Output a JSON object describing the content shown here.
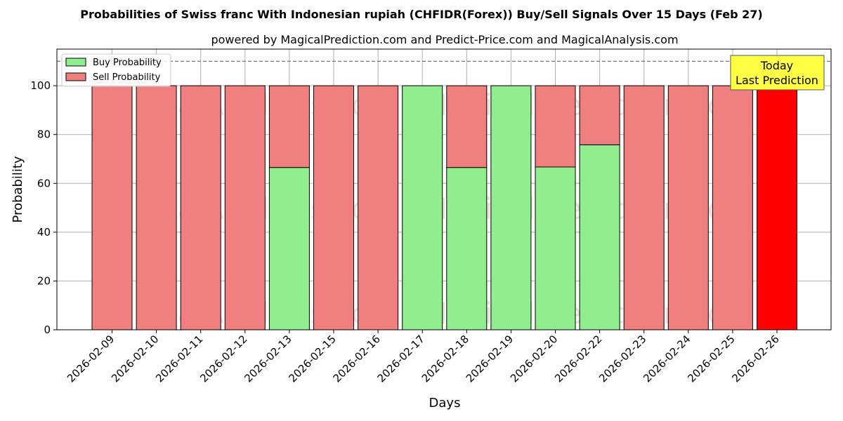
{
  "chart_data": {
    "type": "bar",
    "stacked": true,
    "title": "Probabilities of Swiss franc With Indonesian rupiah (CHFIDR(Forex)) Buy/Sell Signals Over 15 Days (Feb 27)",
    "subtitle": "powered by MagicalPrediction.com and Predict-Price.com and MagicalAnalysis.com",
    "xlabel": "Days",
    "ylabel": "Probability",
    "ylim": [
      0,
      115
    ],
    "yticks": [
      0,
      20,
      40,
      60,
      80,
      100
    ],
    "grid": true,
    "legend_placement": "top-left",
    "reference_line": 110,
    "categories": [
      "2026-02-09",
      "2026-02-10",
      "2026-02-11",
      "2026-02-12",
      "2026-02-13",
      "2026-02-15",
      "2026-02-16",
      "2026-02-17",
      "2026-02-18",
      "2026-02-19",
      "2026-02-20",
      "2026-02-22",
      "2026-02-23",
      "2026-02-24",
      "2026-02-25",
      "2026-02-26"
    ],
    "series": [
      {
        "name": "Buy Probability",
        "color": "#90ee90",
        "values": [
          0,
          0,
          0,
          0,
          66.5,
          0,
          0,
          100,
          66.5,
          100,
          66.7,
          75.8,
          0,
          0,
          0,
          0
        ]
      },
      {
        "name": "Sell Probability",
        "color": "#f08080",
        "values": [
          100,
          100,
          100,
          100,
          33.5,
          100,
          100,
          0,
          33.5,
          0,
          33.3,
          24.2,
          100,
          100,
          100,
          100
        ]
      }
    ],
    "highlight": {
      "index": 15,
      "color": "#ff0000"
    },
    "annotation": {
      "line1": "Today",
      "line2": "Last Prediction",
      "color": "#ffff44"
    },
    "watermarks": [
      "MagicalAnalysis.com",
      "MagicalPrediction.com"
    ]
  }
}
